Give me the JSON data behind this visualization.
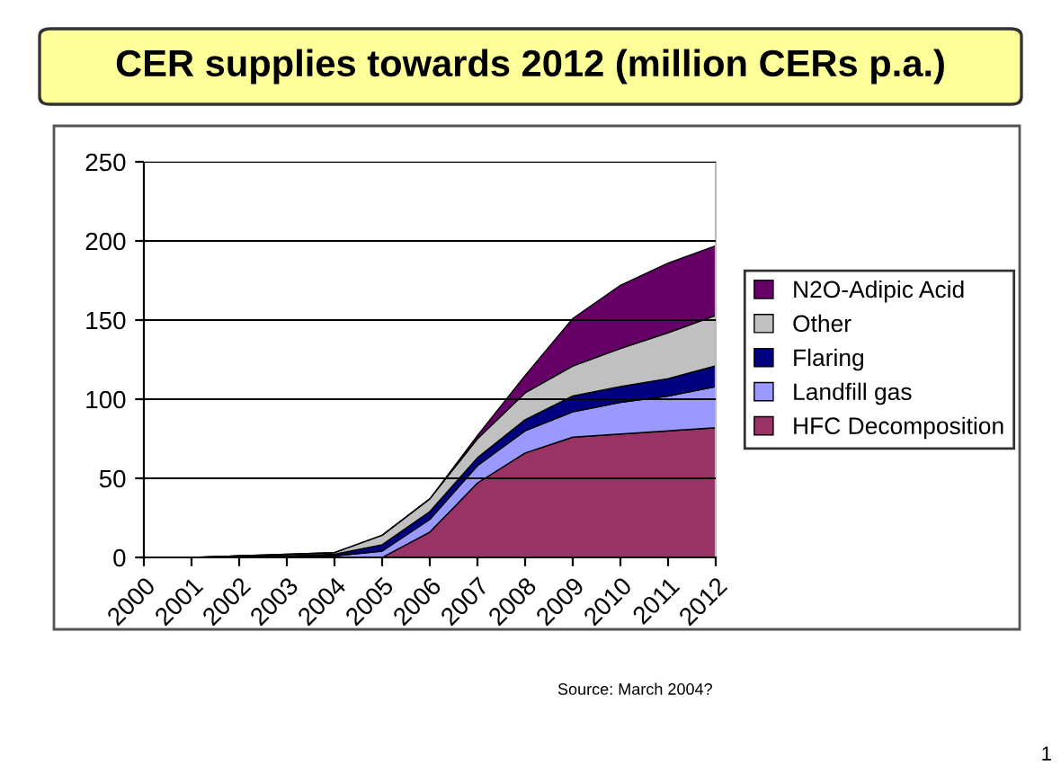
{
  "chart_data": {
    "type": "area",
    "stacked": true,
    "title": "CER supplies towards 2012 (million CERs p.a.)",
    "categories": [
      "2000",
      "2001",
      "2002",
      "2003",
      "2004",
      "2005",
      "2006",
      "2007",
      "2008",
      "2009",
      "2010",
      "2011",
      "2012"
    ],
    "series": [
      {
        "name": "HFC Decomposition",
        "color": "#993366",
        "values": [
          0,
          0,
          0,
          0,
          0,
          0,
          16,
          47,
          66,
          76,
          78,
          80,
          82
        ]
      },
      {
        "name": "Landfill gas",
        "color": "#9999ff",
        "values": [
          0,
          0,
          0,
          0,
          1,
          4,
          8,
          11,
          14,
          16,
          20,
          22,
          26
        ]
      },
      {
        "name": "Flaring",
        "color": "#000080",
        "values": [
          0,
          0,
          1,
          1,
          1,
          4,
          5,
          5,
          7,
          10,
          10,
          11,
          13
        ]
      },
      {
        "name": "Other",
        "color": "#c0c0c0",
        "values": [
          0,
          0,
          0,
          1,
          1,
          6,
          8,
          12,
          17,
          19,
          24,
          29,
          32
        ]
      },
      {
        "name": "N2O-Adipic Acid",
        "color": "#660066",
        "values": [
          0,
          0,
          0,
          0,
          0,
          0,
          0,
          2,
          11,
          30,
          40,
          44,
          44
        ]
      }
    ],
    "ylim": [
      0,
      250
    ],
    "yticks": [
      0,
      50,
      100,
      150,
      200,
      250
    ],
    "grid": "y",
    "legend": "right",
    "annotations": [
      "Source: March 2004?",
      "1"
    ]
  }
}
